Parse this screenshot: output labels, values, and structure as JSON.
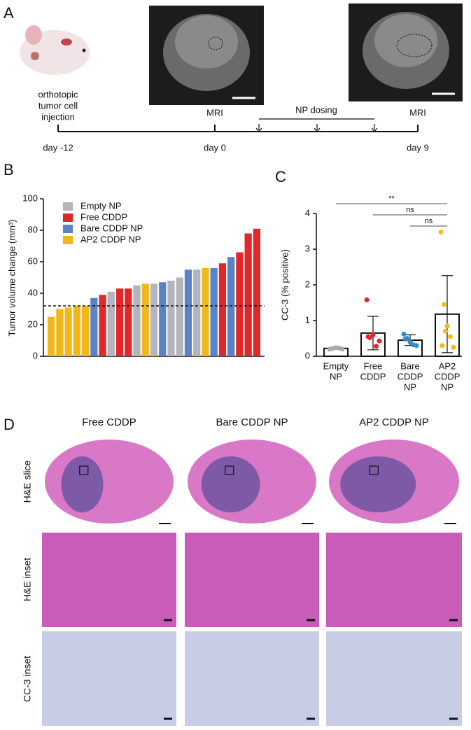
{
  "panel_labels": [
    "A",
    "B",
    "C",
    "D"
  ],
  "timeline": {
    "injection": [
      "orthotopic",
      "tumor cell",
      "injection"
    ],
    "mri_labels": [
      "MRI",
      "MRI"
    ],
    "dosing": "NP dosing",
    "days": [
      "day -12",
      "day 0",
      "day 9"
    ]
  },
  "chart_data": [
    {
      "type": "bar",
      "ylabel": "Tumor volume change (mm³)",
      "ylim": [
        0,
        100
      ],
      "yticks": [
        0,
        20,
        40,
        60,
        80,
        100
      ],
      "reference_line": 32,
      "legend": "upper left",
      "categories": [
        null,
        null,
        null,
        null,
        null,
        null,
        null,
        null,
        null,
        null,
        null,
        null,
        null,
        null,
        null,
        null,
        null,
        null,
        null,
        null,
        null,
        null,
        null,
        null,
        null
      ],
      "series": [
        {
          "name": "Empty NP",
          "color": "#b4b4bc",
          "values": [
            null,
            null,
            null,
            null,
            null,
            null,
            null,
            41,
            null,
            null,
            45,
            null,
            46,
            null,
            48,
            50,
            null,
            55,
            null,
            null,
            null,
            null,
            null,
            null,
            null
          ]
        },
        {
          "name": "Free CDDP",
          "color": "#e0282a",
          "values": [
            null,
            null,
            null,
            null,
            null,
            null,
            39,
            null,
            43,
            43,
            null,
            null,
            null,
            null,
            null,
            null,
            null,
            null,
            null,
            null,
            59,
            null,
            66,
            78,
            81
          ]
        },
        {
          "name": "Bare CDDP NP",
          "color": "#5a82c4",
          "values": [
            null,
            null,
            null,
            null,
            null,
            37,
            null,
            null,
            null,
            null,
            null,
            null,
            null,
            47,
            null,
            null,
            55,
            null,
            null,
            56,
            null,
            63,
            null,
            null,
            null
          ]
        },
        {
          "name": "AP2 CDDP NP",
          "color": "#f0b81c",
          "values": [
            25,
            30,
            31,
            32,
            32,
            null,
            null,
            null,
            null,
            null,
            null,
            46,
            null,
            null,
            null,
            null,
            null,
            null,
            56,
            null,
            null,
            null,
            null,
            null,
            null
          ]
        }
      ]
    },
    {
      "type": "bar-scatter",
      "ylabel": "CC-3 (% positive)",
      "ylim": [
        0,
        4
      ],
      "yticks": [
        0,
        1,
        2,
        3,
        4
      ],
      "categories": [
        [
          "Empty",
          "NP"
        ],
        [
          "Free",
          "CDDP"
        ],
        [
          "Bare",
          "CDDP",
          "NP"
        ],
        [
          "AP2",
          "CDDP",
          "NP"
        ]
      ],
      "colors": [
        "#a8a8b0",
        "#e0282a",
        "#2f8ccc",
        "#f7b81a"
      ],
      "values": [
        0.22,
        0.65,
        0.45,
        1.18
      ],
      "errors": [
        0.03,
        0.47,
        0.15,
        1.08
      ],
      "points": [
        [
          0.2,
          0.22,
          0.24,
          0.23,
          0.2
        ],
        [
          1.58,
          0.52,
          0.6,
          0.28,
          0.43,
          0.55
        ],
        [
          0.62,
          0.5,
          0.4,
          0.32,
          0.3,
          0.48
        ],
        [
          3.48,
          1.45,
          0.85,
          0.55,
          0.25,
          0.3,
          0.7
        ]
      ],
      "significance": [
        {
          "text": "**",
          "from": 0,
          "to": 3
        },
        {
          "text": "ns",
          "from": 1,
          "to": 3
        },
        {
          "text": "ns",
          "from": 2,
          "to": 3
        }
      ]
    }
  ],
  "histology": {
    "columns": [
      "Free CDDP",
      "Bare CDDP NP",
      "AP2 CDDP NP"
    ],
    "rows": [
      "H&E slice",
      "H&E inset",
      "CC-3 inset"
    ]
  }
}
